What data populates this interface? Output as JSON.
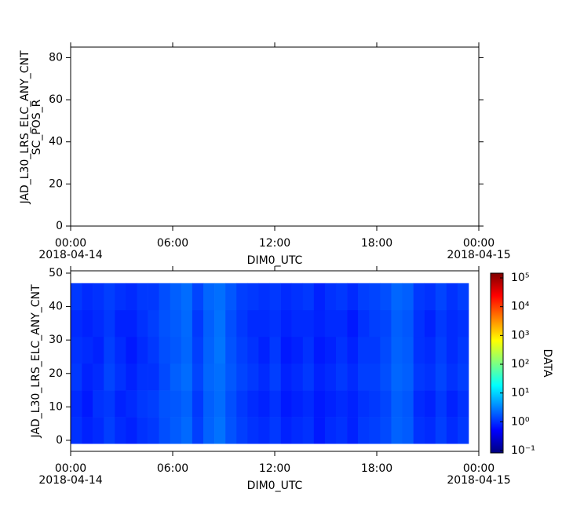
{
  "chart_data": [
    {
      "type": "line",
      "ylabel": [
        "JAD_L30_LRS_ELC_ANY_CNT",
        "SC_POS_R"
      ],
      "xlabel": "DIM0_UTC",
      "series": [],
      "xlim": [
        0,
        24
      ],
      "xticks": [
        {
          "value": 0,
          "label": "00:00"
        },
        {
          "value": 6,
          "label": "06:00"
        },
        {
          "value": 12,
          "label": "12:00"
        },
        {
          "value": 18,
          "label": "18:00"
        },
        {
          "value": 24,
          "label": "00:00"
        }
      ],
      "xtick_dates": [
        "2018-04-14",
        null,
        null,
        null,
        "2018-04-15"
      ],
      "ylim": [
        0,
        85
      ],
      "yticks": [
        0,
        20,
        40,
        60,
        80
      ]
    },
    {
      "type": "heatmap",
      "ylabel": "JAD_L30_LRS_ELC_ANY_CNT",
      "xlabel": "DIM0_UTC",
      "colorbar_label": "DATA",
      "colormap": "jet",
      "xlim": [
        0,
        24
      ],
      "xticks": [
        {
          "value": 0,
          "label": "00:00"
        },
        {
          "value": 6,
          "label": "06:00"
        },
        {
          "value": 12,
          "label": "12:00"
        },
        {
          "value": 18,
          "label": "18:00"
        },
        {
          "value": 24,
          "label": "00:00"
        }
      ],
      "xtick_dates": [
        "2018-04-14",
        null,
        null,
        null,
        "2018-04-15"
      ],
      "ylim": [
        -3.3,
        50.7
      ],
      "yticks": [
        0,
        10,
        20,
        30,
        40,
        50
      ],
      "x_bins": [
        0,
        0.65,
        1.3,
        1.95,
        2.6,
        3.25,
        3.9,
        4.55,
        5.2,
        5.85,
        6.5,
        7.15,
        7.8,
        8.45,
        9.1,
        9.75,
        10.4,
        11.05,
        11.7,
        12.35,
        13.0,
        13.65,
        14.3,
        14.95,
        15.6,
        16.25,
        16.9,
        17.55,
        18.2,
        18.85,
        19.5,
        20.15,
        20.8,
        21.45,
        22.1,
        22.75,
        23.4
      ],
      "y_bins": [
        -1,
        7,
        15,
        23,
        31,
        39,
        47
      ],
      "z": [
        [
          1.0,
          0.8,
          0.9,
          1.2,
          0.9,
          0.8,
          1.0,
          1.1,
          1.5,
          1.8,
          2.2,
          1.2,
          2.0,
          2.5,
          1.6,
          1.2,
          1.0,
          0.9,
          1.1,
          0.8,
          0.9,
          1.0,
          0.7,
          0.9,
          1.0,
          0.8,
          1.1,
          1.2,
          1.4,
          2.0,
          1.8,
          1.0,
          0.9,
          1.2,
          0.9,
          1.1
        ],
        [
          0.9,
          0.7,
          1.0,
          1.1,
          0.8,
          0.9,
          1.1,
          1.2,
          1.6,
          1.7,
          2.0,
          1.1,
          1.9,
          2.3,
          1.5,
          1.1,
          0.9,
          0.8,
          1.0,
          0.7,
          0.8,
          0.9,
          0.7,
          0.8,
          0.9,
          0.8,
          1.0,
          1.1,
          1.3,
          1.9,
          1.7,
          0.9,
          0.8,
          1.1,
          0.8,
          1.0
        ],
        [
          1.1,
          0.8,
          0.9,
          1.3,
          1.0,
          0.8,
          1.0,
          1.0,
          1.4,
          1.9,
          2.3,
          1.3,
          2.1,
          2.4,
          1.7,
          1.3,
          1.1,
          0.9,
          1.2,
          0.8,
          0.9,
          1.1,
          0.8,
          0.9,
          1.1,
          0.9,
          1.2,
          1.2,
          1.5,
          2.1,
          1.9,
          1.1,
          1.0,
          1.3,
          1.0,
          1.2
        ],
        [
          1.0,
          0.9,
          0.8,
          1.2,
          0.9,
          0.7,
          0.9,
          1.1,
          1.5,
          1.7,
          2.1,
          1.2,
          2.0,
          2.6,
          1.6,
          1.2,
          1.0,
          0.8,
          1.1,
          0.7,
          0.8,
          1.0,
          0.7,
          0.8,
          1.0,
          0.8,
          1.1,
          1.1,
          1.4,
          2.0,
          1.8,
          1.0,
          0.9,
          1.2,
          0.9,
          1.1
        ],
        [
          0.9,
          0.8,
          0.9,
          1.1,
          0.8,
          0.8,
          1.0,
          1.2,
          1.6,
          1.8,
          2.2,
          1.1,
          1.9,
          2.5,
          1.5,
          1.1,
          0.9,
          0.9,
          1.0,
          0.8,
          0.9,
          0.9,
          0.8,
          0.9,
          0.9,
          0.7,
          1.0,
          1.2,
          1.3,
          1.9,
          1.7,
          1.0,
          0.8,
          1.1,
          0.9,
          1.0
        ],
        [
          1.1,
          0.9,
          1.0,
          1.2,
          1.0,
          0.9,
          1.1,
          1.1,
          1.5,
          1.9,
          2.3,
          1.3,
          2.1,
          2.4,
          1.7,
          1.2,
          1.1,
          1.0,
          1.1,
          0.9,
          1.0,
          1.1,
          0.8,
          1.0,
          1.1,
          0.9,
          1.2,
          1.3,
          1.5,
          2.1,
          1.9,
          1.1,
          1.0,
          1.3,
          1.0,
          1.2
        ]
      ],
      "zscale": "log",
      "zlim": [
        0.083,
        146000
      ],
      "zticks": [
        {
          "value": 0.1,
          "label": "10⁻¹"
        },
        {
          "value": 1,
          "label": "10⁰"
        },
        {
          "value": 10,
          "label": "10¹"
        },
        {
          "value": 100,
          "label": "10²"
        },
        {
          "value": 1000,
          "label": "10³"
        },
        {
          "value": 10000,
          "label": "10⁴"
        },
        {
          "value": 100000,
          "label": "10⁵"
        }
      ]
    }
  ]
}
